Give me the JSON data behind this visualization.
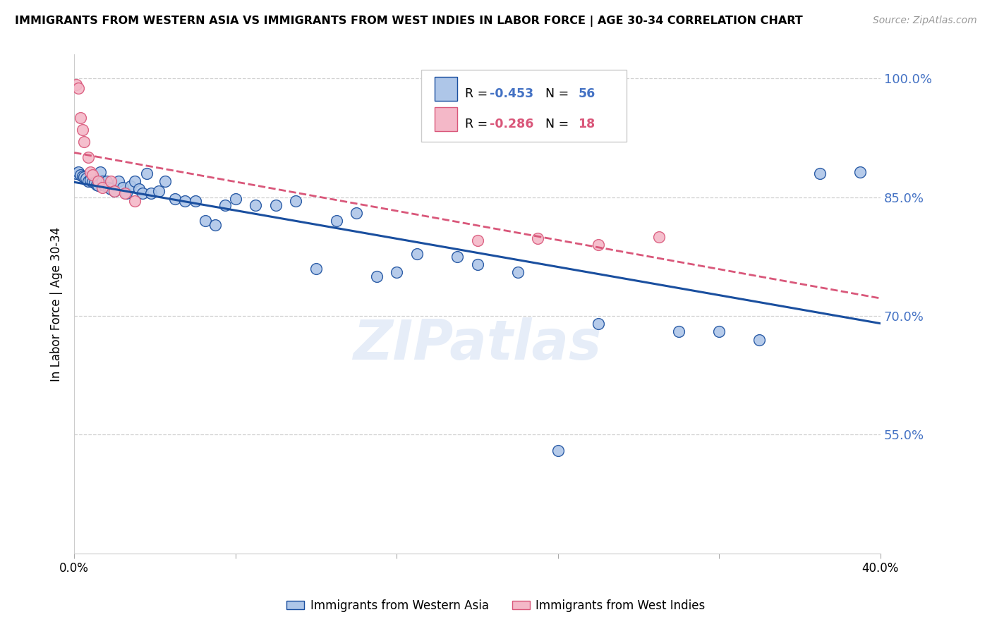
{
  "title": "IMMIGRANTS FROM WESTERN ASIA VS IMMIGRANTS FROM WEST INDIES IN LABOR FORCE | AGE 30-34 CORRELATION CHART",
  "source": "Source: ZipAtlas.com",
  "ylabel": "In Labor Force | Age 30-34",
  "x_min": 0.0,
  "x_max": 0.4,
  "y_min": 0.4,
  "y_max": 1.03,
  "y_ticks": [
    0.55,
    0.7,
    0.85,
    1.0
  ],
  "y_tick_labels": [
    "55.0%",
    "70.0%",
    "85.0%",
    "100.0%"
  ],
  "blue_color": "#aec6e8",
  "blue_line_color": "#1a4f9f",
  "pink_color": "#f4b8c8",
  "pink_line_color": "#d9577a",
  "R_blue": -0.453,
  "N_blue": 56,
  "R_pink": -0.286,
  "N_pink": 18,
  "legend_label_blue": "Immigrants from Western Asia",
  "legend_label_pink": "Immigrants from West Indies",
  "blue_scatter_x": [
    0.001,
    0.002,
    0.003,
    0.004,
    0.005,
    0.006,
    0.007,
    0.008,
    0.009,
    0.01,
    0.011,
    0.012,
    0.013,
    0.014,
    0.015,
    0.016,
    0.017,
    0.018,
    0.02,
    0.022,
    0.024,
    0.026,
    0.028,
    0.03,
    0.032,
    0.034,
    0.036,
    0.038,
    0.042,
    0.045,
    0.05,
    0.055,
    0.06,
    0.065,
    0.07,
    0.075,
    0.08,
    0.09,
    0.1,
    0.11,
    0.12,
    0.13,
    0.14,
    0.15,
    0.16,
    0.17,
    0.19,
    0.2,
    0.22,
    0.24,
    0.26,
    0.3,
    0.32,
    0.34,
    0.37,
    0.39
  ],
  "blue_scatter_y": [
    0.88,
    0.882,
    0.878,
    0.876,
    0.875,
    0.874,
    0.87,
    0.872,
    0.869,
    0.868,
    0.866,
    0.865,
    0.882,
    0.87,
    0.865,
    0.87,
    0.862,
    0.86,
    0.858,
    0.87,
    0.862,
    0.855,
    0.864,
    0.87,
    0.86,
    0.855,
    0.88,
    0.855,
    0.858,
    0.87,
    0.848,
    0.845,
    0.845,
    0.82,
    0.815,
    0.84,
    0.848,
    0.84,
    0.84,
    0.845,
    0.76,
    0.82,
    0.83,
    0.75,
    0.755,
    0.778,
    0.775,
    0.765,
    0.755,
    0.53,
    0.69,
    0.68,
    0.68,
    0.67,
    0.88,
    0.882
  ],
  "pink_scatter_x": [
    0.001,
    0.002,
    0.003,
    0.004,
    0.005,
    0.007,
    0.008,
    0.009,
    0.012,
    0.014,
    0.018,
    0.02,
    0.025,
    0.03,
    0.2,
    0.23,
    0.26,
    0.29
  ],
  "pink_scatter_y": [
    0.992,
    0.988,
    0.95,
    0.935,
    0.92,
    0.9,
    0.882,
    0.878,
    0.87,
    0.862,
    0.87,
    0.858,
    0.855,
    0.845,
    0.795,
    0.798,
    0.79,
    0.8
  ],
  "watermark": "ZIPatlas",
  "background_color": "#ffffff",
  "grid_color": "#d0d0d0"
}
